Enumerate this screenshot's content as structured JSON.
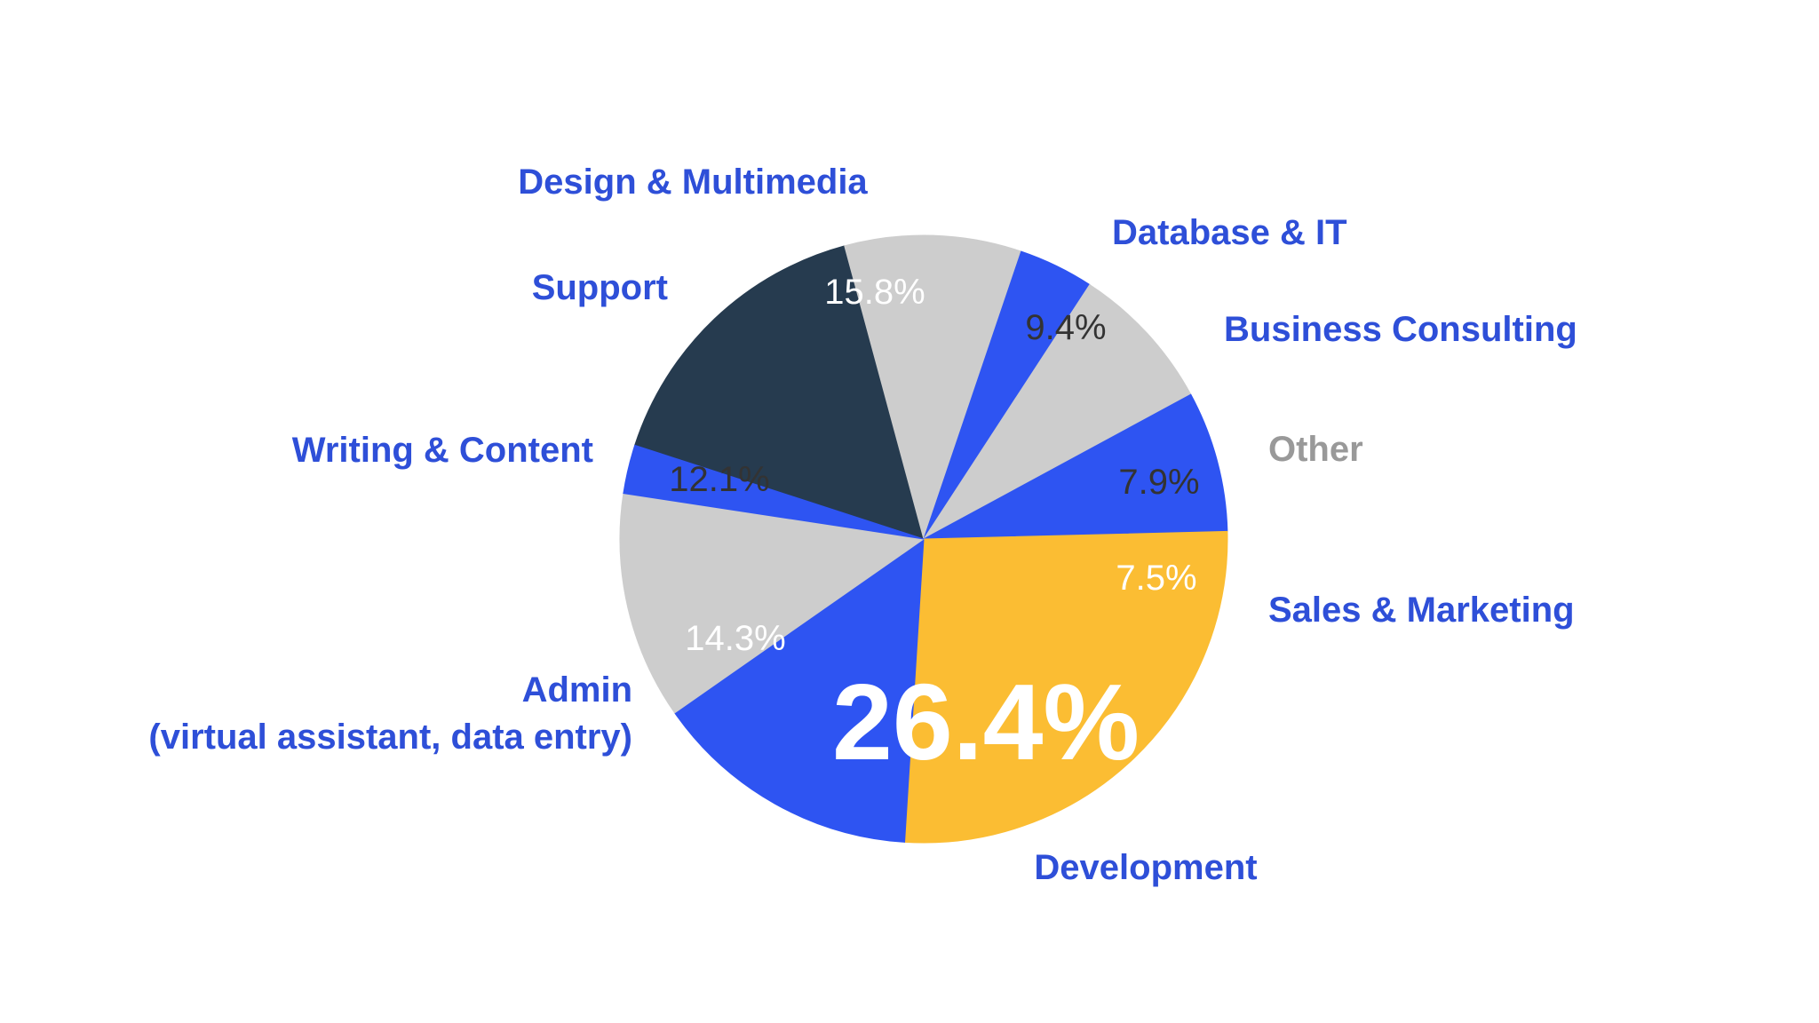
{
  "chart_data": {
    "type": "pie",
    "title": "",
    "unit": "%",
    "slices": [
      {
        "category": "Design & Multimedia",
        "value": 15.8,
        "value_label": "15.8%",
        "color": "#263b4f",
        "value_color": "#ffffff"
      },
      {
        "category": "Database & IT",
        "value": 9.4,
        "value_label": "9.4%",
        "color": "#cdcdcd",
        "value_color": "#333333"
      },
      {
        "category": "Business Consulting",
        "value": 4.0,
        "value_label": "",
        "color": "#2e54f2",
        "value_color": "#ffffff"
      },
      {
        "category": "Other",
        "value": 7.9,
        "value_label": "7.9%",
        "color": "#cdcdcd",
        "value_color": "#333333"
      },
      {
        "category": "Sales & Marketing",
        "value": 7.5,
        "value_label": "7.5%",
        "color": "#2e54f2",
        "value_color": "#ffffff"
      },
      {
        "category": "Development",
        "value": 26.4,
        "value_label": "26.4%",
        "color": "#fbbd33",
        "value_color": "#ffffff"
      },
      {
        "category": "Admin\n(virtual assistant, data entry)",
        "value": 14.3,
        "value_label": "14.3%",
        "color": "#2e54f2",
        "value_color": "#ffffff"
      },
      {
        "category": "Writing & Content",
        "value": 12.1,
        "value_label": "12.1%",
        "color": "#cdcdcd",
        "value_color": "#333333"
      },
      {
        "category": "Support",
        "value": 2.6,
        "value_label": "",
        "color": "#2e54f2",
        "value_color": "#ffffff"
      }
    ],
    "label_color": "#2e4fd8",
    "other_label_color": "#999999",
    "legend": "none",
    "grid": false
  }
}
